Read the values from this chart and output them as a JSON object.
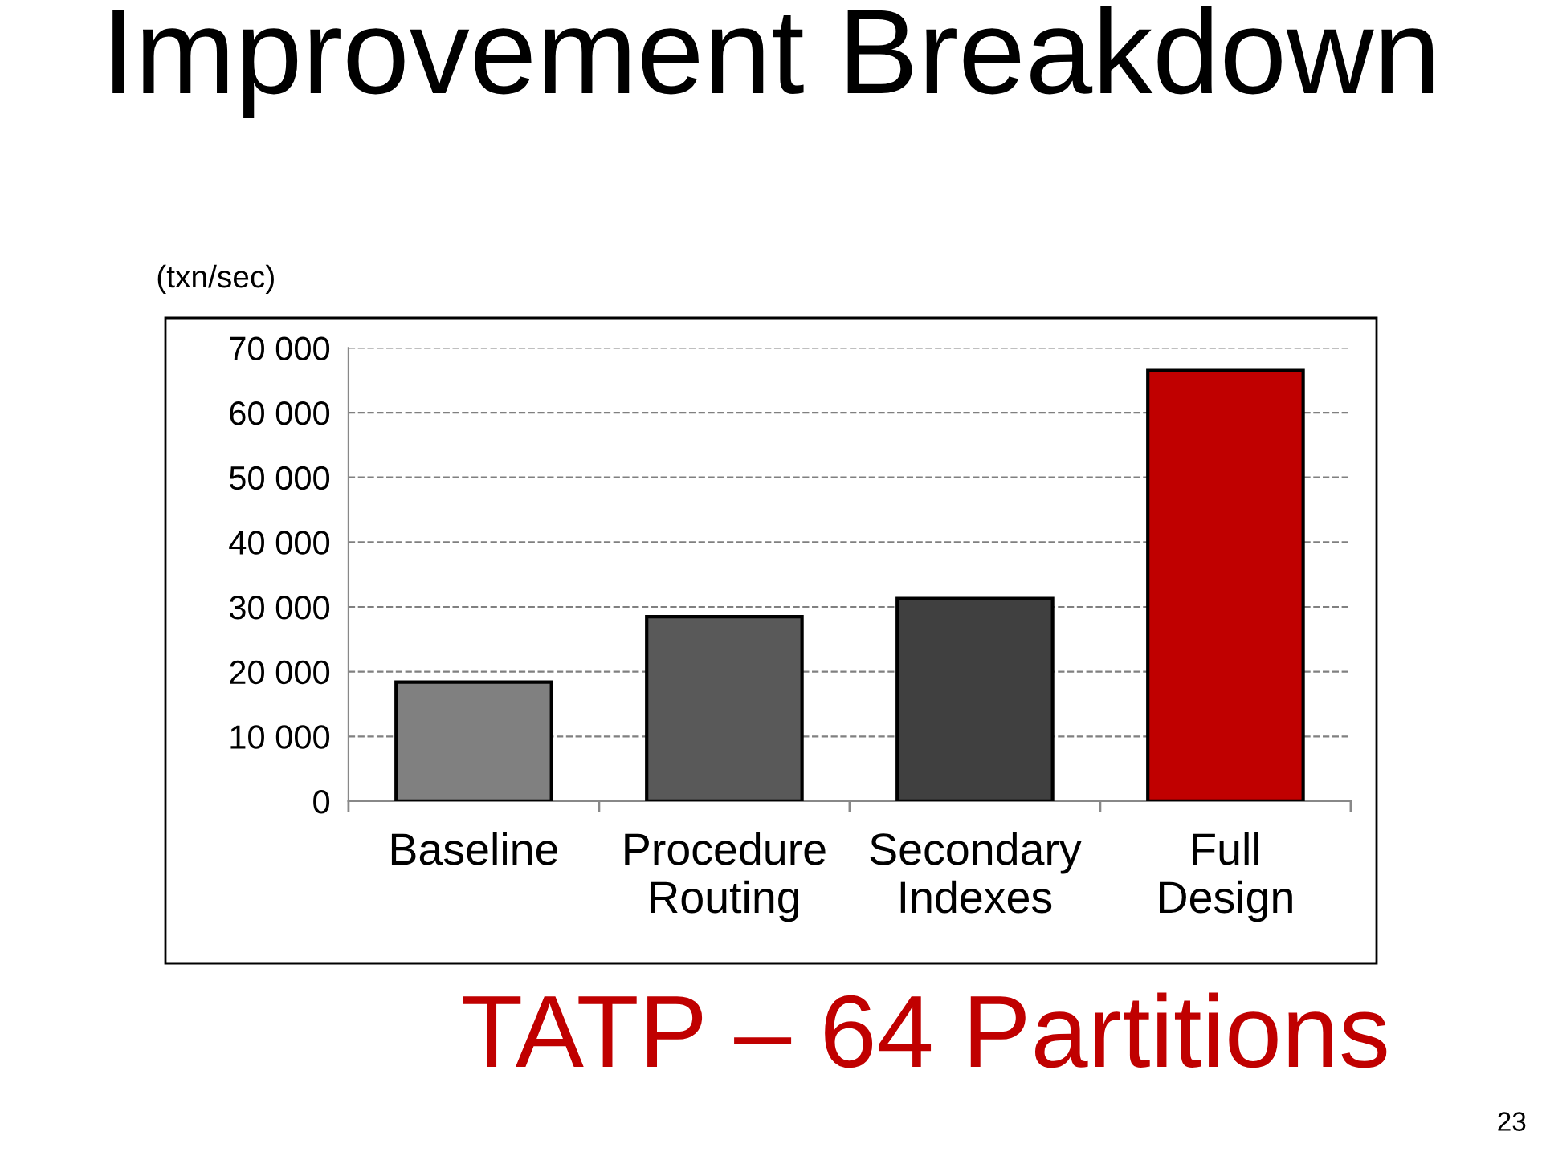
{
  "chart_data": {
    "type": "bar",
    "title": "Improvement Breakdown",
    "subtitle": "TATP – 64 Partitions",
    "ylabel": "(txn/sec)",
    "annotations": [
      "23"
    ],
    "categories": [
      "Baseline",
      "Procedure\nRouting",
      "Secondary\nIndexes",
      "Full\nDesign"
    ],
    "values": [
      18400,
      28500,
      31300,
      66500
    ],
    "colors": [
      "#808080",
      "#595959",
      "#404040",
      "#c00000"
    ],
    "ylim": [
      0,
      70000
    ],
    "yticks": [
      {
        "value": 0,
        "label": "0"
      },
      {
        "value": 10000,
        "label": "10 000"
      },
      {
        "value": 20000,
        "label": "20 000"
      },
      {
        "value": 30000,
        "label": "30 000"
      },
      {
        "value": 40000,
        "label": "40 000"
      },
      {
        "value": 50000,
        "label": "50 000"
      },
      {
        "value": 60000,
        "label": "60 000"
      },
      {
        "value": 70000,
        "label": "70 000"
      }
    ],
    "grid": "y",
    "legend": false
  }
}
